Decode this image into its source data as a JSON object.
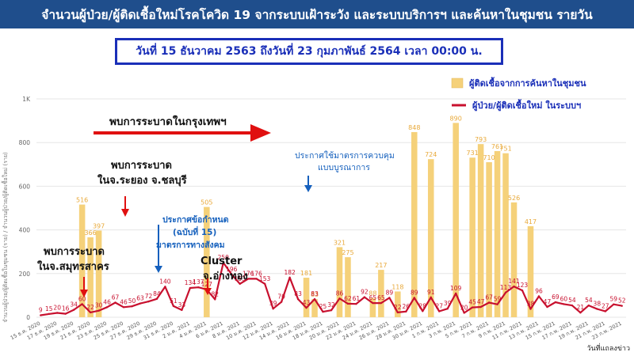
{
  "header": {
    "title": "จำนวนผู้ป่วย/ผู้ติดเชื้อใหม่โรคโควิด 19 จากระบบเฝ้าระวัง และระบบบริการฯ และค้นหาในชุมชน รายวัน"
  },
  "date_range": "วันที่ 15 ธันวาคม 2563 ถึงวันที่ 23 กุมภาพันธ์ 2564 เวลา 00:00 น.",
  "colors": {
    "bar": "#f5d17a",
    "line": "#c8102e",
    "header": "#1f4e8c",
    "annotation_blue": "#1560bd",
    "annotation_red": "#e01010"
  },
  "legend": {
    "bar": "ผู้ติดเชื้อจากการค้นหาในชุมชน",
    "line": "ผู้ป่วย/ผู้ติดเชื้อใหม่ ในระบบฯ"
  },
  "annotations": {
    "bangkok": "พบการระบาดในกรุงเทพฯ",
    "rayong_1": "พบการระบาด",
    "rayong_2": "ในจ.ระยอง จ.ชลบุรี",
    "samut_1": "พบการระบาด",
    "samut_2": "ในจ.สมุทรสาคร",
    "measures": "ประกาศใช้มาตรการควบคุม แบบบูรณาการ",
    "decree_1": "ประกาศข้อกำหนด",
    "decree_2": "(ฉบับที่ 15)",
    "decree_3": "มาตรการทางสังคม",
    "cluster_1": "Cluster",
    "cluster_2": "จ.อ่างทอง"
  },
  "footer": {
    "label": "วันที่แถลงข่าว"
  },
  "chart_data": {
    "type": "bar",
    "title": "",
    "xlabel": "วันที่แถลงข่าว",
    "ylabel": "จำนวนผู้ป่วย/ผู้ติดเชื้อในชุมชน (ราย) / จำนวนผู้ป่วย/ผู้ติดเชื้อใหม่ (ราย)",
    "ylim": [
      0,
      1000
    ],
    "y_ticks": [
      0,
      200,
      400,
      600,
      800,
      1000
    ],
    "y_tick_labels": [
      "0",
      "200",
      "400",
      "600",
      "800",
      "1K"
    ],
    "grid": true,
    "legend_position": "top-right",
    "categories": [
      "15 ธ.ค. 2020",
      "16 ธ.ค. 2020",
      "17 ธ.ค. 2020",
      "18 ธ.ค. 2020",
      "19 ธ.ค. 2020",
      "20 ธ.ค. 2020",
      "21 ธ.ค. 2020",
      "22 ธ.ค. 2020",
      "23 ธ.ค. 2020",
      "24 ธ.ค. 2020",
      "25 ธ.ค. 2020",
      "26 ธ.ค. 2020",
      "27 ธ.ค. 2020",
      "28 ธ.ค. 2020",
      "29 ธ.ค. 2020",
      "30 ธ.ค. 2020",
      "31 ธ.ค. 2020",
      "1 ม.ค. 2021",
      "2 ม.ค. 2021",
      "3 ม.ค. 2021",
      "4 ม.ค. 2021",
      "5 ม.ค. 2021",
      "6 ม.ค. 2021",
      "7 ม.ค. 2021",
      "8 ม.ค. 2021",
      "9 ม.ค. 2021",
      "10 ม.ค. 2021",
      "11 ม.ค. 2021",
      "12 ม.ค. 2021",
      "13 ม.ค. 2021",
      "14 ม.ค. 2021",
      "15 ม.ค. 2021",
      "16 ม.ค. 2021",
      "17 ม.ค. 2021",
      "18 ม.ค. 2021",
      "19 ม.ค. 2021",
      "20 ม.ค. 2021",
      "21 ม.ค. 2021",
      "22 ม.ค. 2021",
      "23 ม.ค. 2021",
      "24 ม.ค. 2021",
      "25 ม.ค. 2021",
      "26 ม.ค. 2021",
      "27 ม.ค. 2021",
      "28 ม.ค. 2021",
      "29 ม.ค. 2021",
      "30 ม.ค. 2021",
      "31 ม.ค. 2021",
      "1 ก.พ. 2021",
      "2 ก.พ. 2021",
      "3 ก.พ. 2021",
      "4 ก.พ. 2021",
      "5 ก.พ. 2021",
      "6 ก.พ. 2021",
      "7 ก.พ. 2021",
      "8 ก.พ. 2021",
      "9 ก.พ. 2021",
      "10 ก.พ. 2021",
      "11 ก.พ. 2021",
      "12 ก.พ. 2021",
      "13 ก.พ. 2021",
      "14 ก.พ. 2021",
      "15 ก.พ. 2021",
      "16 ก.พ. 2021",
      "17 ก.พ. 2021",
      "18 ก.พ. 2021",
      "19 ก.พ. 2021",
      "20 ก.พ. 2021",
      "21 ก.พ. 2021",
      "22 ก.พ. 2021",
      "23 ก.พ. 2021"
    ],
    "x_tick_labels": [
      "15 ธ.ค. 2020",
      "17 ธ.ค. 2020",
      "19 ธ.ค. 2020",
      "21 ธ.ค. 2020",
      "23 ธ.ค. 2020",
      "25 ธ.ค. 2020",
      "27 ธ.ค. 2020",
      "29 ธ.ค. 2020",
      "31 ธ.ค. 2020",
      "2 ม.ค. 2021",
      "4 ม.ค. 2021",
      "6 ม.ค. 2021",
      "8 ม.ค. 2021",
      "10 ม.ค. 2021",
      "12 ม.ค. 2021",
      "14 ม.ค. 2021",
      "16 ม.ค. 2021",
      "18 ม.ค. 2021",
      "20 ม.ค. 2021",
      "22 ม.ค. 2021",
      "24 ม.ค. 2021",
      "26 ม.ค. 2021",
      "28 ม.ค. 2021",
      "30 ม.ค. 2021",
      "1 ก.พ. 2021",
      "3 ก.พ. 2021",
      "5 ก.พ. 2021",
      "7 ก.พ. 2021",
      "9 ก.พ. 2021",
      "11 ก.พ. 2021",
      "13 ก.พ. 2021",
      "15 ก.พ. 2021",
      "17 ก.พ. 2021",
      "19 ก.พ. 2021",
      "21 ก.พ. 2021",
      "23 ก.พ. 2021"
    ],
    "series": [
      {
        "name": "ผู้ติดเชื้อจากการค้นหาในชุมชน",
        "type": "bar",
        "values": [
          0,
          0,
          0,
          0,
          0,
          516,
          366,
          397,
          0,
          0,
          0,
          0,
          0,
          0,
          0,
          0,
          0,
          0,
          0,
          0,
          505,
          0,
          0,
          0,
          0,
          0,
          0,
          0,
          0,
          0,
          0,
          0,
          181,
          83,
          0,
          0,
          321,
          275,
          0,
          0,
          88,
          217,
          0,
          118,
          0,
          848,
          0,
          724,
          0,
          0,
          890,
          0,
          731,
          793,
          710,
          761,
          751,
          526,
          0,
          417,
          0,
          0,
          0,
          0,
          0,
          0,
          0,
          0,
          0,
          0,
          0
        ],
        "labels": [
          "",
          "",
          "",
          "",
          "",
          "516",
          "366",
          "397",
          "",
          "",
          "",
          "",
          "",
          "",
          "",
          "",
          "",
          "",
          "",
          "",
          "505",
          "",
          "",
          "",
          "",
          "",
          "",
          "",
          "",
          "",
          "",
          "",
          "181",
          "83",
          "",
          "",
          "321",
          "275",
          "",
          "",
          "88",
          "217",
          "",
          "118",
          "",
          "848",
          "",
          "724",
          "",
          "",
          "890",
          "",
          "731",
          "793",
          "710",
          "761",
          "751",
          "526",
          "",
          "417",
          "",
          "",
          "",
          "",
          "",
          "",
          "",
          "",
          "",
          "",
          ""
        ]
      },
      {
        "name": "ผู้ป่วย/ผู้ติดเชื้อใหม่ ในระบบฯ",
        "type": "line",
        "values": [
          9,
          15,
          20,
          16,
          34,
          60,
          22,
          30,
          46,
          67,
          46,
          50,
          63,
          72,
          84,
          140,
          51,
          33,
          134,
          137,
          127,
          82,
          250,
          196,
          153,
          176,
          176,
          153,
          39,
          70,
          182,
          83,
          43,
          83,
          25,
          32,
          86,
          62,
          61,
          92,
          65,
          65,
          89,
          22,
          26,
          89,
          28,
          91,
          27,
          39,
          109,
          20,
          45,
          47,
          67,
          59,
          113,
          141,
          123,
          38,
          96,
          47,
          69,
          60,
          54,
          21,
          54,
          38,
          27,
          59,
          52
        ],
        "labels": [
          "9",
          "15",
          "20",
          "16",
          "34",
          "60",
          "22",
          "30",
          "46",
          "67",
          "46",
          "50",
          "63",
          "72",
          "84",
          "140",
          "51",
          "33",
          "134",
          "137",
          "127",
          "82",
          "250",
          "196",
          "153",
          "176",
          "176",
          "153",
          "39",
          "70",
          "182",
          "83",
          "43",
          "83",
          "25",
          "32",
          "86",
          "62",
          "61",
          "92",
          "65",
          "65",
          "89",
          "22",
          "26",
          "89",
          "28",
          "91",
          "27",
          "39",
          "109",
          "20",
          "45",
          "47",
          "67",
          "59",
          "113",
          "141",
          "123",
          "38",
          "96",
          "47",
          "69",
          "60",
          "54",
          "21",
          "54",
          "38",
          "27",
          "59",
          "52"
        ]
      }
    ]
  }
}
